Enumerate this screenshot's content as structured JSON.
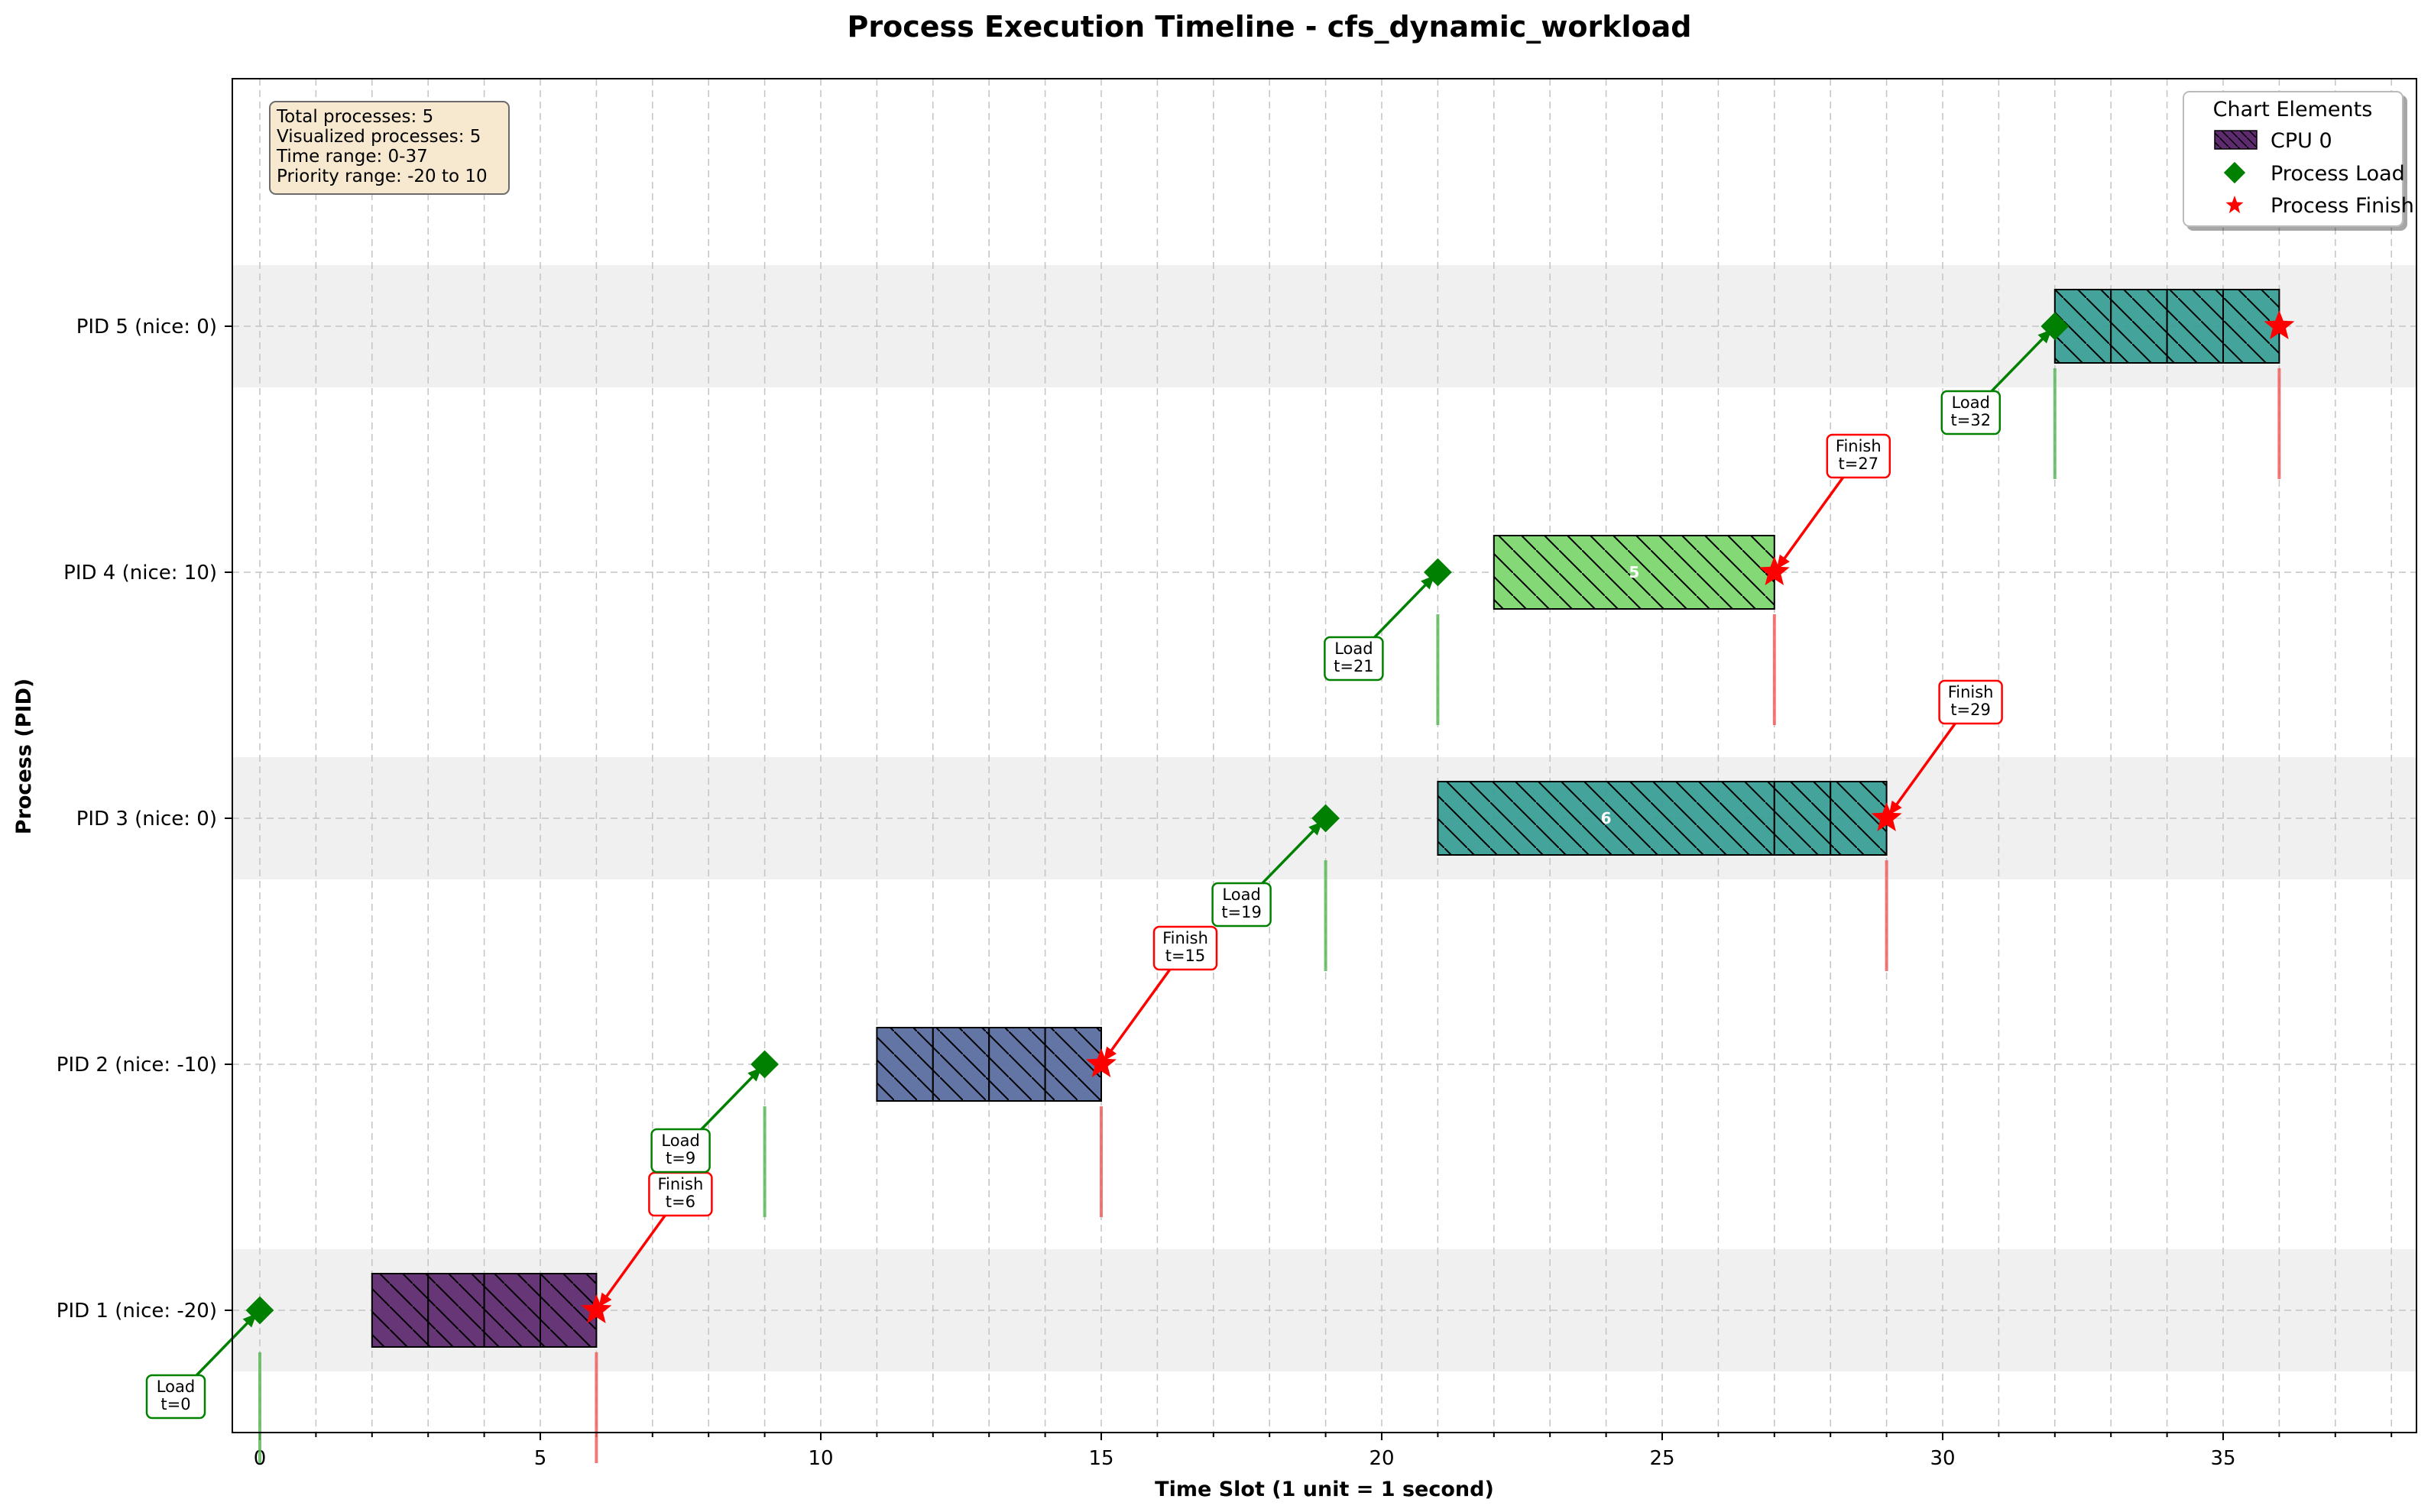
{
  "chart_data": {
    "type": "gantt",
    "title": "Process Execution Timeline - cfs_dynamic_workload",
    "xlabel": "Time Slot (1 unit = 1 second)",
    "ylabel": "Process (PID)",
    "xlim": [
      -0.5,
      38.6
    ],
    "xticks": [
      0,
      5,
      10,
      15,
      20,
      25,
      30,
      35
    ],
    "grid": true,
    "legend_position": "top-right",
    "info_box": [
      "Total processes: 5",
      "Visualized processes: 5",
      "Time range: 0-37",
      "Priority range: -20 to 10"
    ],
    "legend": {
      "title": "Chart Elements",
      "items": [
        {
          "label": "CPU 0",
          "kind": "cpu"
        },
        {
          "label": "Process Load",
          "kind": "load"
        },
        {
          "label": "Process Finish",
          "kind": "finish"
        }
      ]
    },
    "processes": [
      {
        "pid": 1,
        "label": "PID 1 (nice: -20)",
        "color": "#5e2b6f",
        "shaded": true,
        "load": 0,
        "finish": 6,
        "load_text": [
          "Load",
          "t=0"
        ],
        "finish_text": [
          "Finish",
          "t=6"
        ],
        "segments": [
          {
            "start": 2,
            "end": 3
          },
          {
            "start": 3,
            "end": 4
          },
          {
            "start": 4,
            "end": 5
          },
          {
            "start": 5,
            "end": 6
          }
        ]
      },
      {
        "pid": 2,
        "label": "PID 2 (nice: -10)",
        "color": "#5a6ea0",
        "shaded": false,
        "load": 9,
        "finish": 15,
        "load_text": [
          "Load",
          "t=9"
        ],
        "finish_text": [
          "Finish",
          "t=15"
        ],
        "segments": [
          {
            "start": 11,
            "end": 12
          },
          {
            "start": 12,
            "end": 13
          },
          {
            "start": 13,
            "end": 14
          },
          {
            "start": 14,
            "end": 15
          }
        ]
      },
      {
        "pid": 3,
        "label": "PID 3 (nice: 0)",
        "color": "#3a9e96",
        "shaded": true,
        "load": 19,
        "finish": 29,
        "load_text": [
          "Load",
          "t=19"
        ],
        "finish_text": [
          "Finish",
          "t=29"
        ],
        "segments": [
          {
            "start": 21,
            "end": 27,
            "text": "6"
          },
          {
            "start": 27,
            "end": 28
          },
          {
            "start": 28,
            "end": 29
          }
        ]
      },
      {
        "pid": 4,
        "label": "PID 4 (nice: 10)",
        "color": "#7dd66f",
        "shaded": false,
        "load": 21,
        "finish": 27,
        "load_text": [
          "Load",
          "t=21"
        ],
        "finish_text": [
          "Finish",
          "t=27"
        ],
        "segments": [
          {
            "start": 22,
            "end": 27,
            "text": "5"
          }
        ]
      },
      {
        "pid": 5,
        "label": "PID 5 (nice: 0)",
        "color": "#3a9e96",
        "shaded": true,
        "load": 32,
        "finish": 36,
        "load_text": [
          "Load",
          "t=32"
        ],
        "finish_text": [],
        "segments": [
          {
            "start": 32,
            "end": 33
          },
          {
            "start": 33,
            "end": 34
          },
          {
            "start": 34,
            "end": 35
          },
          {
            "start": 35,
            "end": 36
          }
        ]
      }
    ]
  }
}
